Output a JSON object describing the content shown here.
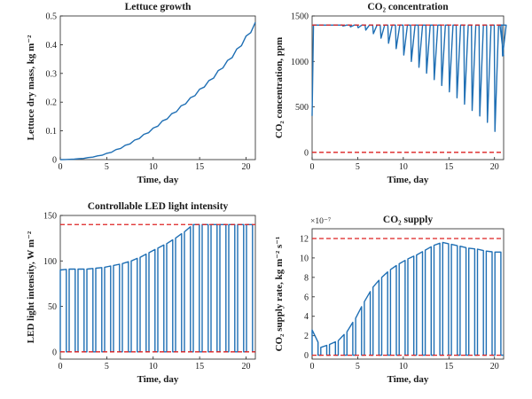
{
  "colors": {
    "series": "#1f6fb4",
    "limit": "#dd2222",
    "axis": "#222222"
  },
  "chart_data": [
    {
      "type": "line",
      "title": "Lettuce growth",
      "xlabel": "Time, day",
      "ylabel": "Lettuce dry mass, kg m⁻²",
      "xlim": [
        0,
        21
      ],
      "ylim": [
        0,
        0.5
      ],
      "xticks": [
        "0",
        "5",
        "10",
        "15",
        "20"
      ],
      "yticks": [
        "0",
        "0.1",
        "0.2",
        "0.3",
        "0.4",
        "0.5"
      ],
      "series": [
        {
          "x": [
            0,
            1,
            2,
            3,
            4,
            5,
            6,
            7,
            8,
            9,
            10,
            11,
            12,
            13,
            14,
            15,
            16,
            17,
            18,
            19,
            20,
            21
          ],
          "values": [
            0.0,
            0.001,
            0.003,
            0.007,
            0.013,
            0.022,
            0.035,
            0.05,
            0.068,
            0.088,
            0.11,
            0.135,
            0.16,
            0.187,
            0.215,
            0.245,
            0.275,
            0.31,
            0.345,
            0.385,
            0.43,
            0.478
          ],
          "style": "solid"
        }
      ]
    },
    {
      "type": "line",
      "title": "CO₂ concentration",
      "xlabel": "Time, day",
      "ylabel": "CO₂ concentration, ppm",
      "xlim": [
        0,
        21
      ],
      "ylim": [
        -80,
        1500
      ],
      "xticks": [
        "0",
        "5",
        "10",
        "15",
        "20"
      ],
      "yticks": [
        "0",
        "500",
        "1000",
        "1500"
      ],
      "series": [
        {
          "values": [
            1400,
            1400,
            1400,
            1390,
            1380,
            1370,
            1345,
            1305,
            1255,
            1200,
            1140,
            1070,
            1000,
            935,
            870,
            800,
            735,
            665,
            600,
            530,
            460,
            400,
            330,
            230,
            1060
          ],
          "style": "daily-drop"
        },
        {
          "values": [
            1400
          ],
          "style": "dashed"
        },
        {
          "values": [
            0
          ],
          "style": "dashed"
        }
      ]
    },
    {
      "type": "line",
      "title": "Controllable LED light intensity",
      "xlabel": "Time, day",
      "ylabel": "LED light intensity, W m⁻²",
      "xlim": [
        0,
        21
      ],
      "ylim": [
        -8,
        150
      ],
      "xticks": [
        "0",
        "5",
        "10",
        "15",
        "20"
      ],
      "yticks": [
        "0",
        "50",
        "100",
        "150"
      ],
      "series": [
        {
          "values": [
            90,
            91,
            91,
            91,
            92,
            93,
            95,
            97,
            100,
            104,
            109,
            114,
            119,
            125,
            132,
            140,
            140,
            140,
            140,
            140,
            140,
            140
          ],
          "style": "daily-pulse"
        },
        {
          "values": [
            140
          ],
          "style": "dashed"
        },
        {
          "values": [
            0
          ],
          "style": "dashed"
        }
      ]
    },
    {
      "type": "line",
      "title": "CO₂ supply",
      "multiplier": "×10⁻⁷",
      "xlabel": "Time, day",
      "ylabel": "CO₂ supply rate, kg m⁻² s⁻¹",
      "xlim": [
        0,
        21
      ],
      "ylim": [
        -0.4,
        13
      ],
      "xticks": [
        "0",
        "5",
        "10",
        "15",
        "20"
      ],
      "yticks": [
        "0",
        "2",
        "4",
        "6",
        "8",
        "10",
        "12"
      ],
      "series": [
        {
          "values": [
            2.6,
            0.8,
            1.1,
            1.5,
            2.4,
            3.8,
            5.5,
            7.0,
            8.0,
            8.8,
            9.4,
            9.9,
            10.3,
            10.8,
            11.3,
            11.6,
            11.4,
            11.2,
            11.0,
            10.9,
            10.7,
            10.6
          ],
          "style": "daily-pulse"
        },
        {
          "values": [
            12
          ],
          "style": "dashed"
        },
        {
          "values": [
            0
          ],
          "style": "dashed"
        }
      ]
    }
  ]
}
